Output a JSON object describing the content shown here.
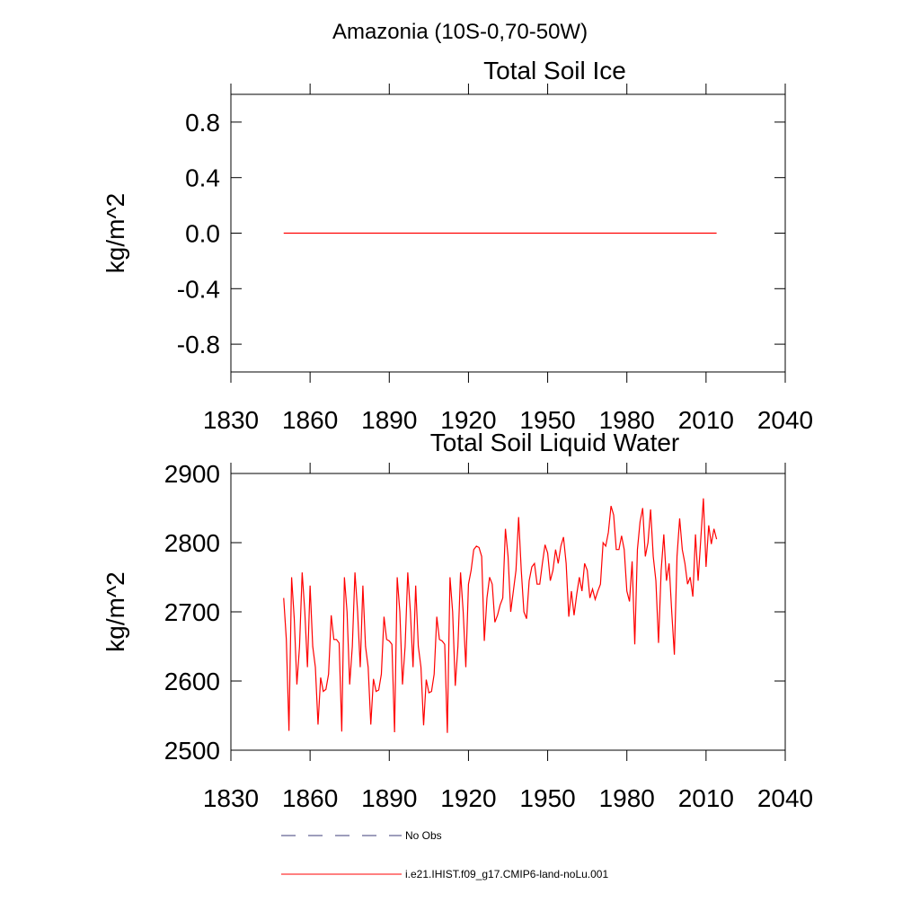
{
  "title": "Amazonia (10S-0,70-50W)",
  "legend": [
    {
      "name": "No Obs",
      "color": "#3c3c78",
      "dashed": true
    }
  ],
  "chart_data": [
    {
      "type": "line",
      "title": "Total Soil Ice",
      "ylabel": "kg/m^2",
      "x": [
        1850,
        1851,
        1852,
        1853,
        1854,
        1855,
        1856,
        1857,
        1858,
        1859,
        1860,
        1861,
        1862,
        1863,
        1864,
        1865,
        1866,
        1867,
        1868,
        1869,
        1870,
        1871,
        1872,
        1873,
        1874,
        1875,
        1876,
        1877,
        1878,
        1879,
        1880,
        1881,
        1882,
        1883,
        1884,
        1885,
        1886,
        1887,
        1888,
        1889,
        1890,
        1891,
        1892,
        1893,
        1894,
        1895,
        1896,
        1897,
        1898,
        1899,
        1900,
        1901,
        1902,
        1903,
        1904,
        1905,
        1906,
        1907,
        1908,
        1909,
        1910,
        1911,
        1912,
        1913,
        1914,
        1915,
        1916,
        1917,
        1918,
        1919,
        1920,
        1921,
        1922,
        1923,
        1924,
        1925,
        1926,
        1927,
        1928,
        1929,
        1930,
        1931,
        1932,
        1933,
        1934,
        1935,
        1936,
        1937,
        1938,
        1939,
        1940,
        1941,
        1942,
        1943,
        1944,
        1945,
        1946,
        1947,
        1948,
        1949,
        1950,
        1951,
        1952,
        1953,
        1954,
        1955,
        1956,
        1957,
        1958,
        1959,
        1960,
        1961,
        1962,
        1963,
        1964,
        1965,
        1966,
        1967,
        1968,
        1969,
        1970,
        1971,
        1972,
        1973,
        1974,
        1975,
        1976,
        1977,
        1978,
        1979,
        1980,
        1981,
        1982,
        1983,
        1984,
        1985,
        1986,
        1987,
        1988,
        1989,
        1990,
        1991,
        1992,
        1993,
        1994,
        1995,
        1996,
        1997,
        1998,
        1999,
        2000,
        2001,
        2002,
        2003,
        2004,
        2005,
        2006,
        2007,
        2008,
        2009,
        2010,
        2011,
        2012,
        2013,
        2014
      ],
      "series": [
        {
          "color": "#ff0000",
          "values": [
            0,
            0,
            0,
            0,
            0,
            0,
            0,
            0,
            0,
            0,
            0,
            0,
            0,
            0,
            0,
            0,
            0,
            0,
            0,
            0,
            0,
            0,
            0,
            0,
            0,
            0,
            0,
            0,
            0,
            0,
            0,
            0,
            0,
            0,
            0,
            0,
            0,
            0,
            0,
            0,
            0,
            0,
            0,
            0,
            0,
            0,
            0,
            0,
            0,
            0,
            0,
            0,
            0,
            0,
            0,
            0,
            0,
            0,
            0,
            0,
            0,
            0,
            0,
            0,
            0,
            0,
            0,
            0,
            0,
            0,
            0,
            0,
            0,
            0,
            0,
            0,
            0,
            0,
            0,
            0,
            0,
            0,
            0,
            0,
            0,
            0,
            0,
            0,
            0,
            0,
            0,
            0,
            0,
            0,
            0,
            0,
            0,
            0,
            0,
            0,
            0,
            0,
            0,
            0,
            0,
            0,
            0,
            0,
            0,
            0,
            0,
            0,
            0,
            0,
            0,
            0,
            0,
            0,
            0,
            0,
            0,
            0,
            0,
            0,
            0,
            0,
            0,
            0,
            0,
            0,
            0,
            0,
            0,
            0,
            0,
            0,
            0,
            0,
            0,
            0,
            0,
            0,
            0,
            0,
            0,
            0,
            0,
            0,
            0,
            0,
            0,
            0,
            0,
            0,
            0,
            0,
            0,
            0,
            0,
            0,
            0,
            0,
            0,
            0,
            0
          ]
        }
      ],
      "xlim": [
        1830,
        2040
      ],
      "xticks": [
        1830,
        1860,
        1890,
        1920,
        1950,
        1980,
        2010,
        2040
      ],
      "ylim": [
        -1,
        1
      ],
      "yticks": [
        -0.8,
        -0.4,
        {
          "value": 0,
          "label": "0.0"
        },
        0.4,
        0.8
      ]
    },
    {
      "type": "line",
      "title": "Total Soil Liquid Water",
      "ylabel": "kg/m^2",
      "x": [
        1850,
        1851,
        1852,
        1853,
        1854,
        1855,
        1856,
        1857,
        1858,
        1859,
        1860,
        1861,
        1862,
        1863,
        1864,
        1865,
        1866,
        1867,
        1868,
        1869,
        1870,
        1871,
        1872,
        1873,
        1874,
        1875,
        1876,
        1877,
        1878,
        1879,
        1880,
        1881,
        1882,
        1883,
        1884,
        1885,
        1886,
        1887,
        1888,
        1889,
        1890,
        1891,
        1892,
        1893,
        1894,
        1895,
        1896,
        1897,
        1898,
        1899,
        1900,
        1901,
        1902,
        1903,
        1904,
        1905,
        1906,
        1907,
        1908,
        1909,
        1910,
        1911,
        1912,
        1913,
        1914,
        1915,
        1916,
        1917,
        1918,
        1919,
        1920,
        1921,
        1922,
        1923,
        1924,
        1925,
        1926,
        1927,
        1928,
        1929,
        1930,
        1931,
        1932,
        1933,
        1934,
        1935,
        1936,
        1937,
        1938,
        1939,
        1940,
        1941,
        1942,
        1943,
        1944,
        1945,
        1946,
        1947,
        1948,
        1949,
        1950,
        1951,
        1952,
        1953,
        1954,
        1955,
        1956,
        1957,
        1958,
        1959,
        1960,
        1961,
        1962,
        1963,
        1964,
        1965,
        1966,
        1967,
        1968,
        1969,
        1970,
        1971,
        1972,
        1973,
        1974,
        1975,
        1976,
        1977,
        1978,
        1979,
        1980,
        1981,
        1982,
        1983,
        1984,
        1985,
        1986,
        1987,
        1988,
        1989,
        1990,
        1991,
        1992,
        1993,
        1994,
        1995,
        1996,
        1997,
        1998,
        1999,
        2000,
        2001,
        2002,
        2003,
        2004,
        2005,
        2006,
        2007,
        2008,
        2009,
        2010,
        2011,
        2012,
        2013,
        2014
      ],
      "series": [
        {
          "name": "i.e21.IHIST.f09_g17.CMIP6-land-noLu.001",
          "color": "#ff0000",
          "values": [
            2720,
            2660,
            2528,
            2750,
            2690,
            2595,
            2650,
            2757,
            2700,
            2620,
            2738,
            2650,
            2620,
            2537,
            2605,
            2585,
            2588,
            2610,
            2695,
            2660,
            2660,
            2655,
            2527,
            2750,
            2700,
            2595,
            2650,
            2757,
            2700,
            2620,
            2738,
            2650,
            2620,
            2537,
            2603,
            2585,
            2587,
            2610,
            2693,
            2660,
            2658,
            2653,
            2526,
            2750,
            2700,
            2595,
            2650,
            2757,
            2700,
            2620,
            2738,
            2650,
            2620,
            2536,
            2602,
            2583,
            2585,
            2610,
            2693,
            2660,
            2658,
            2653,
            2525,
            2750,
            2700,
            2593,
            2650,
            2757,
            2700,
            2620,
            2740,
            2760,
            2790,
            2795,
            2793,
            2780,
            2658,
            2720,
            2750,
            2740,
            2685,
            2695,
            2710,
            2720,
            2820,
            2780,
            2700,
            2730,
            2760,
            2837,
            2760,
            2700,
            2690,
            2745,
            2765,
            2770,
            2740,
            2740,
            2770,
            2797,
            2785,
            2745,
            2760,
            2790,
            2770,
            2795,
            2808,
            2770,
            2693,
            2730,
            2695,
            2725,
            2750,
            2730,
            2770,
            2760,
            2720,
            2733,
            2718,
            2730,
            2740,
            2800,
            2795,
            2815,
            2853,
            2840,
            2790,
            2790,
            2810,
            2790,
            2730,
            2715,
            2773,
            2653,
            2790,
            2830,
            2850,
            2780,
            2800,
            2848,
            2780,
            2745,
            2655,
            2760,
            2812,
            2745,
            2770,
            2700,
            2638,
            2780,
            2835,
            2790,
            2770,
            2740,
            2750,
            2722,
            2812,
            2745,
            2805,
            2864,
            2765,
            2825,
            2798,
            2820,
            2805
          ]
        }
      ],
      "xlim": [
        1830,
        2040
      ],
      "xticks": [
        1830,
        1860,
        1890,
        1920,
        1950,
        1980,
        2010,
        2040
      ],
      "ylim": [
        2500,
        2900
      ],
      "yticks": [
        2500,
        2600,
        2700,
        2800,
        2900
      ]
    }
  ]
}
